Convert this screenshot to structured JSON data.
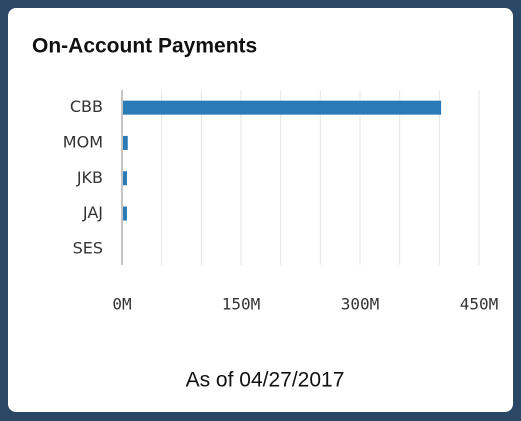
{
  "chart_data": {
    "type": "bar",
    "orientation": "horizontal",
    "title": "On-Account Payments",
    "categories": [
      "CBB",
      "MOM",
      "JKB",
      "JAJ",
      "SES"
    ],
    "values": [
      401,
      6,
      5,
      5,
      0
    ],
    "color": "#2a7ab8",
    "xlim": [
      0,
      450
    ],
    "xticks": [
      {
        "value": 0,
        "label": "0M"
      },
      {
        "value": 150,
        "label": "150M"
      },
      {
        "value": 300,
        "label": "300M"
      },
      {
        "value": 450,
        "label": "450M"
      }
    ],
    "xgrid": [
      50,
      100,
      150,
      200,
      250,
      300,
      350,
      400,
      450
    ],
    "grid": true,
    "footer": "As of 04/27/2017"
  }
}
